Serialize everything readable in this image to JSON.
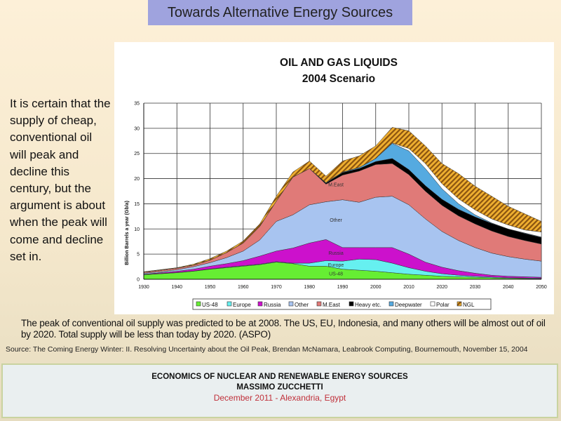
{
  "slide": {
    "title": "Towards Alternative Energy Sources",
    "side_text": "It is certain that the supply of cheap, conventional oil will peak and decline this century, but the argument is about when the peak will come and decline set in.",
    "caption": "The peak of conventional oil supply was predicted to be at 2008. The US, EU, Indonesia, and many others will be almost out of oil by 2020. Total supply will be less than today by 2020. (ASPO)",
    "source": "Source: The Coming Energy Winter: II. Resolving Uncertainty about the Oil Peak, Brendan McNamara, Leabrook Computing, Bournemouth, November 15, 2004",
    "footer": {
      "line1": "ECONOMICS OF NUCLEAR AND RENEWABLE ENERGY SOURCES",
      "line2": "MASSIMO ZUCCHETTI",
      "line3": "December 2011 - Alexandria, Egypt"
    }
  },
  "chart_data": {
    "type": "area",
    "stacked": true,
    "title": "OIL AND GAS LIQUIDS",
    "subtitle": "2004 Scenario",
    "xlabel": "",
    "ylabel": "Billion Barrels a year (Gb/a)",
    "xlim": [
      1930,
      2050
    ],
    "ylim": [
      0,
      35
    ],
    "xticks": [
      "1930",
      "1940",
      "1950",
      "1960",
      "1970",
      "1980",
      "1990",
      "2000",
      "2010",
      "2020",
      "2030",
      "2040",
      "2050"
    ],
    "yticks": [
      "0",
      "5",
      "10",
      "15",
      "20",
      "25",
      "30",
      "35"
    ],
    "grid": true,
    "legend_position": "bottom",
    "x": [
      1930,
      1935,
      1940,
      1945,
      1950,
      1955,
      1960,
      1965,
      1970,
      1975,
      1980,
      1985,
      1990,
      1995,
      2000,
      2005,
      2010,
      2015,
      2020,
      2025,
      2030,
      2035,
      2040,
      2045,
      2050
    ],
    "series": [
      {
        "name": "US-48",
        "color": "#66ee33",
        "values": [
          0.9,
          1.1,
          1.3,
          1.6,
          2.0,
          2.3,
          2.6,
          2.9,
          3.4,
          3.1,
          2.6,
          2.6,
          2.0,
          1.8,
          1.6,
          1.3,
          1.0,
          0.8,
          0.6,
          0.5,
          0.4,
          0.3,
          0.2,
          0.15,
          0.1
        ]
      },
      {
        "name": "Europe",
        "color": "#66f0f0",
        "values": [
          0.05,
          0.05,
          0.05,
          0.05,
          0.05,
          0.1,
          0.1,
          0.1,
          0.1,
          0.1,
          0.6,
          1.1,
          1.6,
          2.2,
          2.3,
          1.9,
          1.3,
          0.8,
          0.5,
          0.3,
          0.2,
          0.15,
          0.1,
          0.1,
          0.1
        ]
      },
      {
        "name": "Russia",
        "color": "#cc11cc",
        "values": [
          0.05,
          0.15,
          0.25,
          0.35,
          0.55,
          0.7,
          1.0,
          1.6,
          2.1,
          3.0,
          4.0,
          4.2,
          2.7,
          2.3,
          2.4,
          3.1,
          2.7,
          1.8,
          1.3,
          0.9,
          0.6,
          0.35,
          0.3,
          0.25,
          0.2
        ]
      },
      {
        "name": "Other",
        "color": "#a8c4f0",
        "values": [
          0.2,
          0.2,
          0.3,
          0.5,
          0.7,
          1.2,
          1.9,
          3.2,
          5.9,
          6.6,
          7.6,
          7.5,
          9.5,
          9.0,
          10.0,
          10.2,
          9.8,
          8.6,
          7.1,
          6.0,
          5.1,
          4.4,
          3.9,
          3.5,
          3.2
        ]
      },
      {
        "name": "M.East",
        "color": "#e07a78",
        "values": [
          0.2,
          0.3,
          0.3,
          0.3,
          0.5,
          1.0,
          1.6,
          2.7,
          4.0,
          7.5,
          7.2,
          3.5,
          4.9,
          6.2,
          6.5,
          6.5,
          6.0,
          5.5,
          5.2,
          4.9,
          4.7,
          4.4,
          4.0,
          3.7,
          3.4
        ]
      },
      {
        "name": "Heavy etc.",
        "color": "#000000",
        "values": [
          0,
          0,
          0,
          0,
          0,
          0,
          0,
          0,
          0,
          0,
          0,
          0.2,
          0.5,
          0.5,
          0.6,
          1.0,
          1.0,
          1.1,
          1.2,
          1.3,
          1.4,
          1.5,
          1.5,
          1.4,
          1.3
        ]
      },
      {
        "name": "Deepwater",
        "color": "#55aae0",
        "values": [
          0,
          0,
          0,
          0,
          0,
          0,
          0,
          0,
          0,
          0,
          0,
          0.1,
          0.1,
          0.2,
          0.6,
          3.0,
          3.7,
          3.4,
          2.1,
          1.1,
          0.4,
          0.1,
          0,
          0.1,
          0.1
        ]
      },
      {
        "name": "Polar",
        "color": "#ffffff",
        "values": [
          0,
          0,
          0,
          0,
          0,
          0,
          0,
          0,
          0,
          0,
          0,
          0,
          0,
          0,
          0,
          0.1,
          0.5,
          1.0,
          1.0,
          1.0,
          1.0,
          0.8,
          0.8,
          0.6,
          1.0
        ]
      },
      {
        "name": "NGL",
        "color": "#c8801e",
        "values": [
          0.1,
          0.1,
          0.1,
          0.2,
          0.3,
          0.3,
          0.4,
          0.5,
          1.0,
          1.0,
          1.5,
          1.3,
          2.2,
          2.3,
          2.5,
          3.1,
          3.5,
          3.5,
          4.0,
          5.0,
          4.7,
          4.5,
          3.7,
          3.2,
          2.1
        ]
      }
    ],
    "annotations": [
      {
        "text": "M.East",
        "x": 1988,
        "y": 18.5
      },
      {
        "text": "Other",
        "x": 1988,
        "y": 11.4
      },
      {
        "text": "Russia",
        "x": 1988,
        "y": 4.9
      },
      {
        "text": "Europe",
        "x": 1988,
        "y": 2.5
      },
      {
        "text": "US-48",
        "x": 1988,
        "y": 0.8
      }
    ]
  }
}
